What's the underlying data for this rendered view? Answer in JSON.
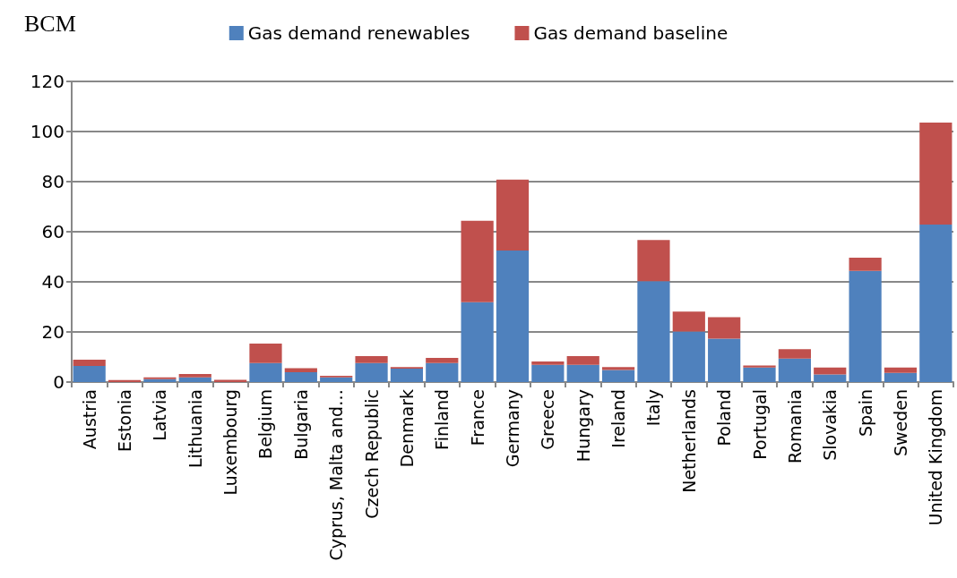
{
  "chart_data": {
    "type": "bar",
    "ylabel": "BCM",
    "stacked": true,
    "legend": "top",
    "grid": "y",
    "categories": [
      "Austria",
      "Estonia",
      "Latvia",
      "Lithuania",
      "Luxembourg",
      "Belgium",
      "Bulgaria",
      "Cyprus, Malta and…",
      "Czech Republic",
      "Denmark",
      "Finland",
      "France",
      "Germany",
      "Greece",
      "Hungary",
      "Ireland",
      "Italy",
      "Netherlands",
      "Poland",
      "Portugal",
      "Romania",
      "Slovakia",
      "Spain",
      "Sweden",
      "United Kingdom"
    ],
    "series": [
      {
        "name": "Gas demand renewables",
        "color": "#4f81bd",
        "values": [
          6.4,
          null,
          1.2,
          1.9,
          null,
          7.6,
          3.9,
          1.9,
          7.6,
          5.4,
          7.6,
          31.9,
          52.5,
          6.9,
          6.9,
          4.8,
          40.3,
          20.2,
          17.3,
          5.8,
          9.4,
          3.0,
          44.4,
          3.7,
          62.9
        ]
      },
      {
        "name": "Gas demand baseline",
        "color": "#c0504d",
        "values": [
          2.5,
          0.8,
          0.7,
          1.3,
          0.9,
          7.8,
          1.6,
          0.6,
          2.8,
          0.6,
          2.0,
          32.5,
          28.3,
          1.3,
          3.5,
          1.2,
          16.4,
          7.9,
          8.6,
          0.8,
          3.7,
          2.8,
          5.2,
          2.1,
          40.7
        ]
      }
    ],
    "ylim": [
      0,
      120
    ],
    "yticks": [
      0,
      20,
      40,
      60,
      80,
      100,
      120
    ]
  }
}
